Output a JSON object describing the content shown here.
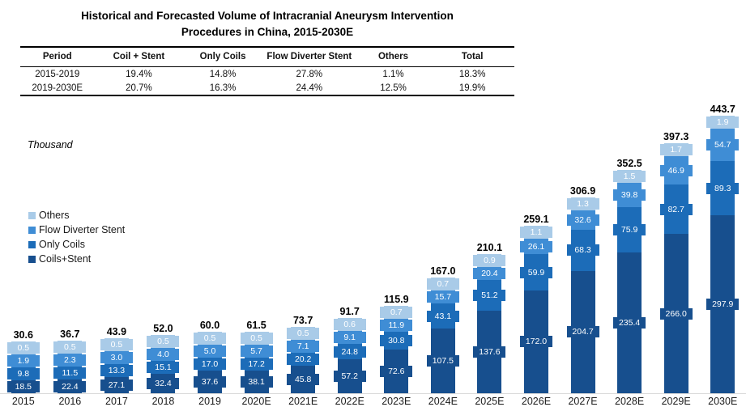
{
  "title": {
    "line1": "Historical and Forecasted Volume of Intracranial Aneurysm Intervention",
    "line2": "Procedures in China, 2015-2030E"
  },
  "table": {
    "headers": [
      "Period",
      "Coil + Stent",
      "Only Coils",
      "Flow Diverter Stent",
      "Others",
      "Total"
    ],
    "rows": [
      [
        "2015-2019",
        "19.4%",
        "14.8%",
        "27.8%",
        "1.1%",
        "18.3%"
      ],
      [
        "2019-2030E",
        "20.7%",
        "16.3%",
        "24.4%",
        "12.5%",
        "19.9%"
      ]
    ]
  },
  "unit_label": "Thousand",
  "legend": [
    {
      "label": "Others",
      "color": "#A9CBE8"
    },
    {
      "label": "Flow Diverter Stent",
      "color": "#3F8DD5"
    },
    {
      "label": "Only Coils",
      "color": "#1C6CB8"
    },
    {
      "label": "Coils+Stent",
      "color": "#174F8E"
    }
  ],
  "chart_data": {
    "type": "bar",
    "stacked": true,
    "unit": "Thousand",
    "ylabel": "Thousand",
    "grid": false,
    "legend_position": "left-middle",
    "categories": [
      "2015",
      "2016",
      "2017",
      "2018",
      "2019",
      "2020E",
      "2021E",
      "2022E",
      "2023E",
      "2024E",
      "2025E",
      "2026E",
      "2027E",
      "2028E",
      "2029E",
      "2030E"
    ],
    "series": [
      {
        "name": "Coils+Stent",
        "color": "#174F8E",
        "values": [
          18.5,
          22.4,
          27.1,
          32.4,
          37.6,
          38.1,
          45.8,
          57.2,
          72.6,
          107.5,
          137.6,
          172.0,
          204.7,
          235.4,
          266.0,
          297.9
        ]
      },
      {
        "name": "Only Coils",
        "color": "#1C6CB8",
        "values": [
          9.8,
          11.5,
          13.3,
          15.1,
          17.0,
          17.2,
          20.2,
          24.8,
          30.8,
          43.1,
          51.2,
          59.9,
          68.3,
          75.9,
          82.7,
          89.3
        ]
      },
      {
        "name": "Flow Diverter Stent",
        "color": "#3F8DD5",
        "values": [
          1.9,
          2.3,
          3.0,
          4.0,
          5.0,
          5.7,
          7.1,
          9.1,
          11.9,
          15.7,
          20.4,
          26.1,
          32.6,
          39.8,
          46.9,
          54.7
        ]
      },
      {
        "name": "Others",
        "color": "#A9CBE8",
        "values": [
          0.5,
          0.5,
          0.5,
          0.5,
          0.5,
          0.5,
          0.5,
          0.6,
          0.7,
          0.7,
          0.9,
          1.1,
          1.3,
          1.5,
          1.7,
          1.9
        ]
      }
    ],
    "totals": [
      30.6,
      36.7,
      43.9,
      52.0,
      60.0,
      61.5,
      73.7,
      91.7,
      115.9,
      167.0,
      210.1,
      259.1,
      306.9,
      352.5,
      397.3,
      443.7
    ]
  }
}
